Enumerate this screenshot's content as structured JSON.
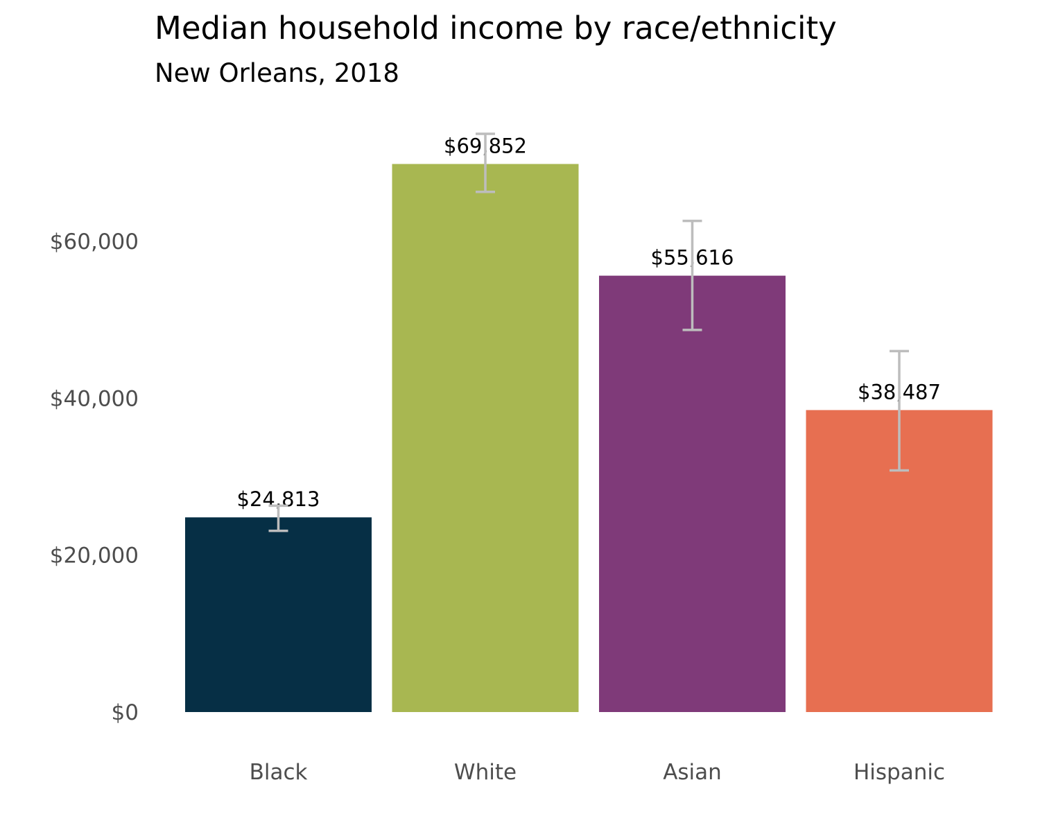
{
  "chart_data": {
    "type": "bar",
    "title": "Median household income by race/ethnicity",
    "subtitle": "New Orleans, 2018",
    "xlabel": "",
    "ylabel": "",
    "categories": [
      "Black",
      "White",
      "Asian",
      "Hispanic"
    ],
    "values": [
      24813,
      69852,
      55616,
      38487
    ],
    "value_labels": [
      "$24,813",
      "$69,852",
      "$55,616",
      "$38,487"
    ],
    "error_low": [
      23100,
      66300,
      48700,
      30800
    ],
    "error_high": [
      26300,
      73700,
      62600,
      46000
    ],
    "colors": [
      "#062f45",
      "#a8b751",
      "#7f3a79",
      "#e76f51"
    ],
    "error_bar_color": "#bdbdbd",
    "ylim": [
      0,
      76000
    ],
    "yticks": [
      0,
      20000,
      40000,
      60000
    ],
    "ytick_labels": [
      "$0",
      "$20,000",
      "$40,000",
      "$60,000"
    ],
    "grid": false,
    "legend": "none"
  }
}
